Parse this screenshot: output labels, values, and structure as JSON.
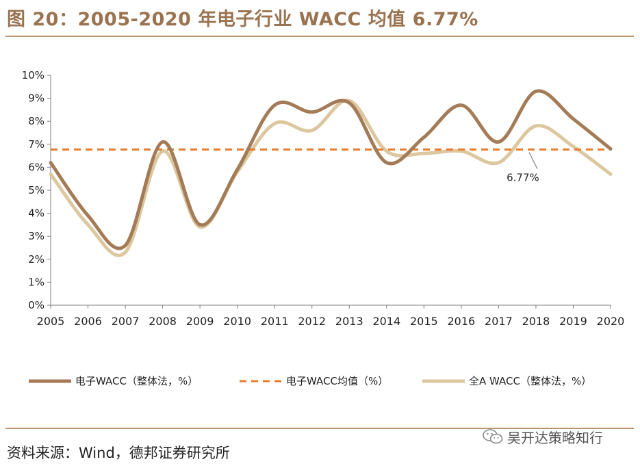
{
  "figure": {
    "title": "图 20：2005-2020 年电子行业 WACC 均值 6.77%",
    "source": "资料来源：Wind，德邦证券研究所",
    "brand": "吴开达策略知行"
  },
  "colors": {
    "electronic": "#a47b57",
    "mean": "#e87b2c",
    "allA": "#dcc79f",
    "axis": "#7f7f7f",
    "title": "#9a7350"
  },
  "chart_data": {
    "type": "line",
    "x": [
      "2005",
      "2006",
      "2007",
      "2008",
      "2009",
      "2010",
      "2011",
      "2012",
      "2013",
      "2014",
      "2015",
      "2016",
      "2017",
      "2018",
      "2019",
      "2020"
    ],
    "series": [
      {
        "name": "电子WACC（整体法，%）",
        "values": [
          6.2,
          3.9,
          2.6,
          7.1,
          3.5,
          5.9,
          8.7,
          8.4,
          8.8,
          6.2,
          7.3,
          8.7,
          7.1,
          9.3,
          8.1,
          6.8
        ]
      },
      {
        "name": "电子WACC均值（%）",
        "values": [
          6.77,
          6.77,
          6.77,
          6.77,
          6.77,
          6.77,
          6.77,
          6.77,
          6.77,
          6.77,
          6.77,
          6.77,
          6.77,
          6.77,
          6.77,
          6.77
        ],
        "style": "dashed"
      },
      {
        "name": "全A WACC（整体法，%）",
        "values": [
          5.7,
          3.5,
          2.3,
          6.7,
          3.4,
          5.8,
          7.9,
          7.6,
          8.9,
          6.7,
          6.6,
          6.7,
          6.2,
          7.8,
          6.9,
          5.7
        ]
      }
    ],
    "ylim": [
      0,
      10
    ],
    "yticks": [
      "0%",
      "1%",
      "2%",
      "3%",
      "4%",
      "5%",
      "6%",
      "7%",
      "8%",
      "9%",
      "10%"
    ],
    "annotation": {
      "text": "6.77%",
      "x": "2018",
      "y": 6.77
    },
    "legend_position": "bottom",
    "grid": false
  }
}
